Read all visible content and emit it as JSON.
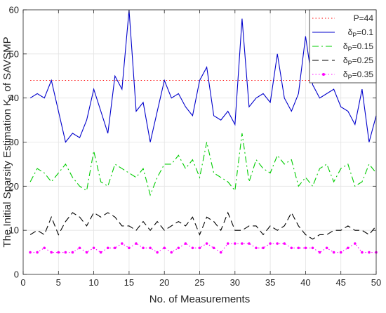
{
  "chart_data": {
    "type": "line",
    "title": "",
    "xlabel": "No. of Measurements",
    "ylabel": "The Initial Sparsity Estimation K",
    "ylabel_sub": "0",
    "ylabel_tail": "of SAVSMP",
    "xlim": [
      0,
      50
    ],
    "ylim": [
      0,
      60
    ],
    "xticks": [
      0,
      5,
      10,
      15,
      20,
      25,
      30,
      35,
      40,
      45,
      50
    ],
    "yticks": [
      0,
      10,
      20,
      30,
      40,
      50,
      60
    ],
    "grid": true,
    "legend_position": "top-right",
    "x": [
      1,
      2,
      3,
      4,
      5,
      6,
      7,
      8,
      9,
      10,
      11,
      12,
      13,
      14,
      15,
      16,
      17,
      18,
      19,
      20,
      21,
      22,
      23,
      24,
      25,
      26,
      27,
      28,
      29,
      30,
      31,
      32,
      33,
      34,
      35,
      36,
      37,
      38,
      39,
      40,
      41,
      42,
      43,
      44,
      45,
      46,
      47,
      48,
      49,
      50
    ],
    "series": [
      {
        "legend_main": "P=44",
        "legend_sub": "",
        "legend_tail": "",
        "color": "#ff0000",
        "style": "dotted",
        "marker": "none",
        "values": [
          44,
          44,
          44,
          44,
          44,
          44,
          44,
          44,
          44,
          44,
          44,
          44,
          44,
          44,
          44,
          44,
          44,
          44,
          44,
          44,
          44,
          44,
          44,
          44,
          44,
          44,
          44,
          44,
          44,
          44,
          44,
          44,
          44,
          44,
          44,
          44,
          44,
          44,
          44,
          44,
          44,
          44,
          44,
          44,
          44,
          44,
          44,
          44,
          44,
          44
        ]
      },
      {
        "legend_main": "δ",
        "legend_sub": "P",
        "legend_tail": "=0.1",
        "color": "#0000cc",
        "style": "solid",
        "marker": "none",
        "values": [
          40,
          41,
          40,
          44,
          37,
          30,
          32,
          31,
          35,
          42,
          37,
          32,
          45,
          42,
          60,
          37,
          39,
          30,
          37,
          44,
          40,
          41,
          38,
          36,
          44,
          47,
          36,
          35,
          37,
          34,
          58,
          38,
          40,
          41,
          39,
          50,
          40,
          37,
          41,
          54,
          43,
          40,
          41,
          42,
          38,
          37,
          34,
          42,
          30,
          36
        ]
      },
      {
        "legend_main": "δ",
        "legend_sub": "P",
        "legend_tail": "=0.15",
        "color": "#00cc00",
        "style": "dashdot",
        "marker": "none",
        "values": [
          21,
          24,
          23,
          21,
          23,
          25,
          22,
          20,
          19,
          28,
          21,
          20,
          25,
          24,
          23,
          22,
          24,
          18,
          22,
          25,
          25,
          27,
          24,
          26,
          22,
          30,
          23,
          22,
          21,
          19,
          32,
          21,
          26,
          24,
          23,
          27,
          25,
          26,
          20,
          22,
          20,
          24,
          25,
          21,
          24,
          25,
          20,
          21,
          25,
          23
        ]
      },
      {
        "legend_main": "δ",
        "legend_sub": "P",
        "legend_tail": "=0.25",
        "color": "#000000",
        "style": "dashed",
        "marker": "none",
        "values": [
          9,
          10,
          9,
          13,
          9,
          12,
          14,
          13,
          11,
          14,
          13,
          14,
          13,
          11,
          11,
          10,
          12,
          10,
          12,
          10,
          11,
          12,
          11,
          13,
          9,
          13,
          12,
          10,
          14,
          10,
          10,
          11,
          11,
          9,
          11,
          10,
          11,
          14,
          11,
          9,
          8,
          9,
          9,
          10,
          10,
          11,
          10,
          10,
          9,
          11
        ]
      },
      {
        "legend_main": "δ",
        "legend_sub": "P",
        "legend_tail": "=0.35",
        "color": "#ff00ff",
        "style": "dotted",
        "marker": "dot",
        "values": [
          5,
          5,
          6,
          5,
          5,
          5,
          5,
          6,
          5,
          6,
          5,
          6,
          6,
          7,
          6,
          7,
          6,
          6,
          5,
          6,
          5,
          6,
          7,
          6,
          6,
          7,
          6,
          5,
          7,
          7,
          7,
          7,
          6,
          6,
          7,
          7,
          7,
          6,
          6,
          6,
          6,
          5,
          6,
          5,
          5,
          6,
          7,
          5,
          5,
          5
        ]
      }
    ]
  }
}
